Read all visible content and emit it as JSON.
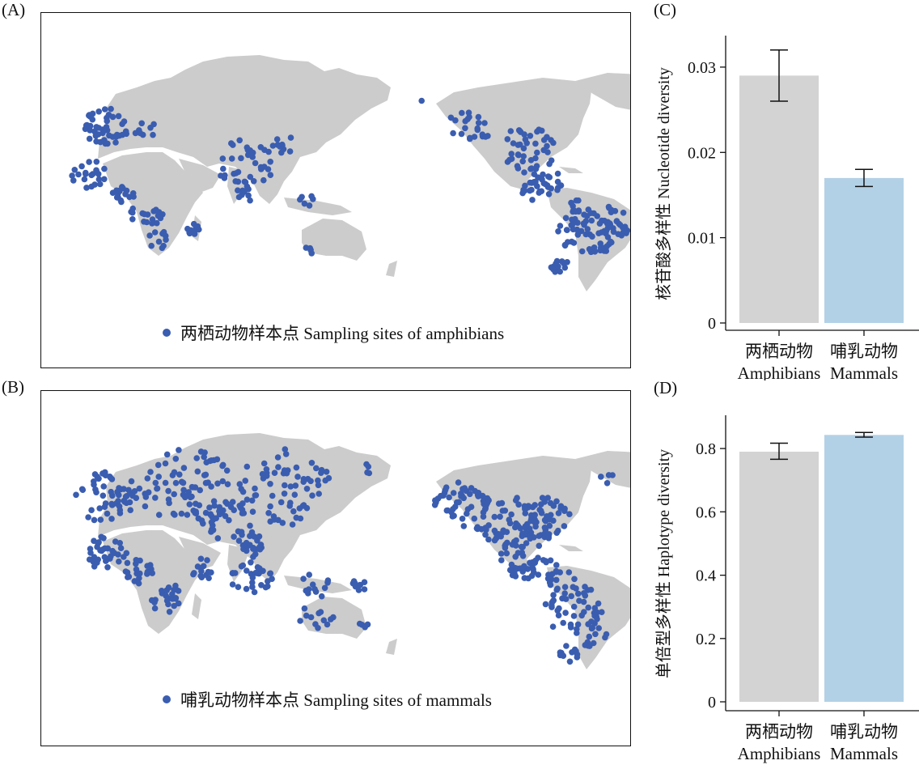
{
  "panels": {
    "a": {
      "label": "(A)",
      "legend_marker": "blue-dot-icon",
      "legend": "两栖动物样本点 Sampling sites of amphibians"
    },
    "b": {
      "label": "(B)",
      "legend_marker": "blue-dot-icon",
      "legend": "哺乳动物样本点 Sampling sites of mammals"
    },
    "c": {
      "label": "(C)"
    },
    "d": {
      "label": "(D)"
    }
  },
  "colors": {
    "land": "#cccccc",
    "sample_dot": "#3a5db0",
    "amphibian_bar": "#d3d3d3",
    "mammal_bar": "#b3d1e6",
    "axis": "#111111"
  },
  "chart_data": [
    {
      "panel": "C",
      "type": "bar",
      "categories": [
        "两栖动物\nAmphibians",
        "哺乳动物\nMammals"
      ],
      "values": [
        0.029,
        0.017
      ],
      "error_low": [
        0.026,
        0.016
      ],
      "error_high": [
        0.032,
        0.018
      ],
      "colors": [
        "#d3d3d3",
        "#b3d1e6"
      ],
      "ylabel": "核苷酸多样性 Nucleotide diversity",
      "yticks": [
        0,
        0.01,
        0.02,
        0.03
      ],
      "ytick_labels": [
        "0",
        "0.01",
        "0.02",
        "0.03"
      ],
      "ylim": [
        0,
        0.0335
      ],
      "grid": false
    },
    {
      "panel": "D",
      "type": "bar",
      "categories": [
        "两栖动物\nAmphibians",
        "哺乳动物\nMammals"
      ],
      "values": [
        0.79,
        0.843
      ],
      "error_low": [
        0.766,
        0.836
      ],
      "error_high": [
        0.817,
        0.851
      ],
      "colors": [
        "#d3d3d3",
        "#b3d1e6"
      ],
      "ylabel": "单倍型多样性 Haplotype diversity",
      "yticks": [
        0,
        0.2,
        0.4,
        0.6,
        0.8
      ],
      "ytick_labels": [
        "0",
        "0.2",
        "0.4",
        "0.6",
        "0.8"
      ],
      "ylim": [
        0,
        0.9
      ],
      "grid": false
    }
  ]
}
